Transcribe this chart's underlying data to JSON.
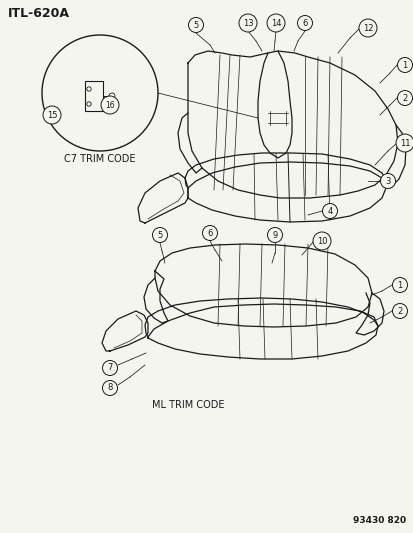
{
  "title": "ITL-620A",
  "part_number": "93430 820",
  "bg": "#f5f5f0",
  "lc": "#1a1a1a",
  "label_c7": "C7 TRIM CODE",
  "label_ml": "ML TRIM CODE",
  "fig_w": 4.14,
  "fig_h": 5.33,
  "dpi": 100
}
